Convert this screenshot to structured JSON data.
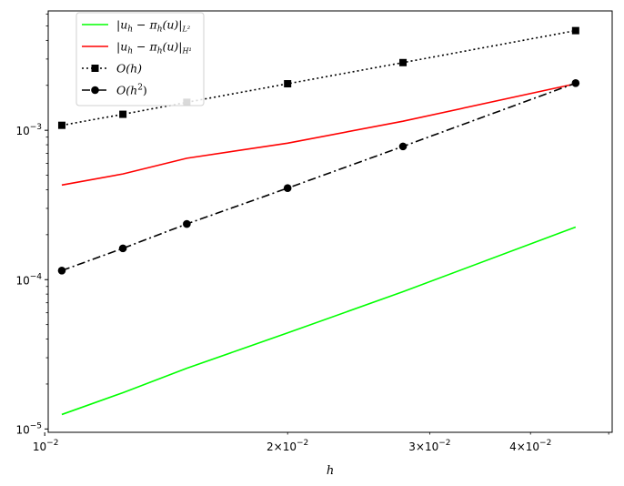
{
  "chart_data": {
    "type": "line",
    "xscale": "log",
    "yscale": "log",
    "xlabel": "h",
    "ylabel": "",
    "xlim": [
      0.0101,
      0.0505
    ],
    "ylim": [
      9.5e-06,
      0.0063
    ],
    "grid": false,
    "legend_position": "upper left",
    "x": [
      0.0105,
      0.0125,
      0.015,
      0.02,
      0.0278,
      0.0455
    ],
    "series": [
      {
        "name": "|u_h − π_h(u)|_{L²}",
        "legend_main": "|u",
        "legend_sub": "h",
        "legend_mid": " − π",
        "legend_sub2": "h",
        "legend_tail": "(u)|",
        "legend_norm": "L²",
        "color": "#00ff00",
        "style": "solid",
        "marker": "none",
        "values": [
          1.25e-05,
          1.75e-05,
          2.55e-05,
          4.4e-05,
          8.3e-05,
          0.000225
        ]
      },
      {
        "name": "|u_h − π_h(u)|_{H¹}",
        "legend_main": "|u",
        "legend_sub": "h",
        "legend_mid": " − π",
        "legend_sub2": "h",
        "legend_tail": "(u)|",
        "legend_norm": "H¹",
        "color": "#ff0000",
        "style": "solid",
        "marker": "none",
        "values": [
          0.00043,
          0.00051,
          0.00065,
          0.00082,
          0.00115,
          0.00205
        ]
      },
      {
        "name": "O(h)",
        "legend_plain": "O(h)",
        "color": "#000000",
        "style": "dotted",
        "marker": "square",
        "values": [
          0.00108,
          0.00128,
          0.00154,
          0.00205,
          0.00284,
          0.00465
        ]
      },
      {
        "name": "O(h²)",
        "legend_plain": "O(h²)",
        "color": "#000000",
        "style": "dashdot",
        "marker": "circle",
        "values": [
          0.000115,
          0.000162,
          0.000236,
          0.00041,
          0.00078,
          0.00207
        ]
      }
    ],
    "xticks_major": [
      {
        "value": 0.01,
        "base": "10",
        "exp": "−2",
        "mant": ""
      }
    ],
    "xticks_labeled_minor": [
      {
        "value": 0.02,
        "mant": "2×10",
        "exp": "−2"
      },
      {
        "value": 0.03,
        "mant": "3×10",
        "exp": "−2"
      },
      {
        "value": 0.04,
        "mant": "4×10",
        "exp": "−2"
      }
    ],
    "yticks_major": [
      {
        "value": 1e-05,
        "base": "10",
        "exp": "−5"
      },
      {
        "value": 0.0001,
        "base": "10",
        "exp": "−4"
      },
      {
        "value": 0.001,
        "base": "10",
        "exp": "−3"
      }
    ]
  }
}
